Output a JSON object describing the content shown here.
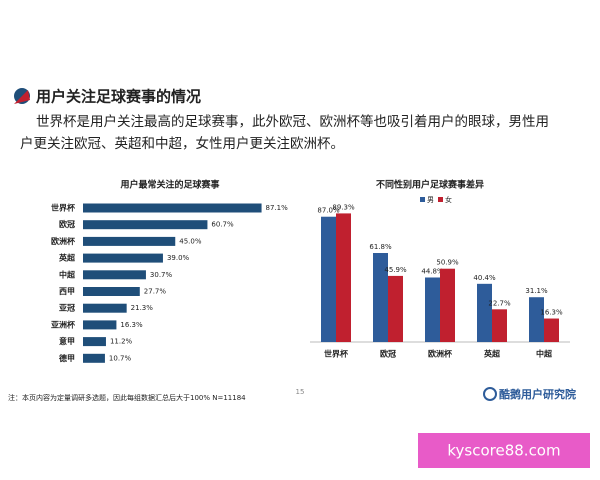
{
  "header": {
    "title": "用户关注足球赛事的情况"
  },
  "body": [
    "世界杯是用户关注最高的足球赛事，此外欧冠、欧洲杯等也吸引着用户的眼球，男性用",
    "户更关注欧冠、英超和中超，女性用户更关注欧洲杯。"
  ],
  "chart_data": [
    {
      "type": "bar",
      "orientation": "horizontal",
      "title": "用户最常关注的足球赛事",
      "categories": [
        "世界杯",
        "欧冠",
        "欧洲杯",
        "英超",
        "中超",
        "西甲",
        "亚冠",
        "亚洲杯",
        "意甲",
        "德甲"
      ],
      "values": [
        87.1,
        60.7,
        45.0,
        39.0,
        30.7,
        27.7,
        21.3,
        16.3,
        11.2,
        10.7
      ],
      "value_labels": [
        "87.1%",
        "60.7%",
        "45.0%",
        "39.0%",
        "30.7%",
        "27.7%",
        "21.3%",
        "16.3%",
        "11.2%",
        "10.7%"
      ],
      "color": "#1f4e79",
      "xlim": [
        0,
        100
      ]
    },
    {
      "type": "bar",
      "orientation": "vertical",
      "title": "不同性别用户足球赛事差异",
      "categories": [
        "世界杯",
        "欧冠",
        "欧洲杯",
        "英超",
        "中超"
      ],
      "series": [
        {
          "name": "男",
          "color": "#2e5c9a",
          "values": [
            87.0,
            61.8,
            44.8,
            40.4,
            31.1
          ],
          "value_labels": [
            "87.0%",
            "61.8%",
            "44.8%",
            "40.4%",
            "31.1%"
          ]
        },
        {
          "name": "女",
          "color": "#c0202f",
          "values": [
            89.3,
            45.9,
            50.9,
            22.7,
            16.3
          ],
          "value_labels": [
            "89.3%",
            "45.9%",
            "50.9%",
            "22.7%",
            "16.3%"
          ]
        }
      ],
      "ylim": [
        0,
        100
      ],
      "legend": "top"
    }
  ],
  "footnote": "注：本页内容为定量调研多选题，因此每组数据汇总后大于100%  N=11184",
  "page_number": "15",
  "logo": "酷鹅用户研究院",
  "watermark": "kyscore88.com"
}
